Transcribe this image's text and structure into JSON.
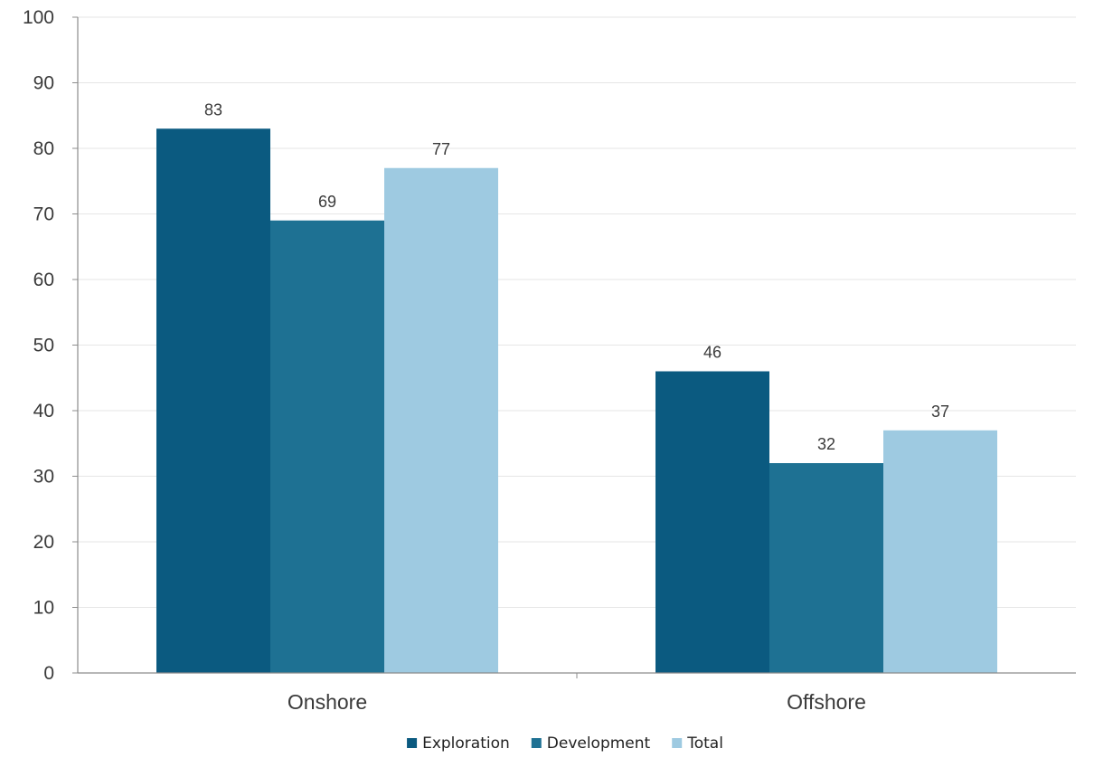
{
  "chart_data": {
    "type": "bar",
    "title": "",
    "xlabel": "",
    "ylabel": "",
    "categories": [
      "Onshore",
      "Offshore"
    ],
    "series": [
      {
        "name": "Exploration",
        "values": [
          83,
          46
        ],
        "color": "#0b5a80"
      },
      {
        "name": "Development",
        "values": [
          69,
          32
        ],
        "color": "#1e7193"
      },
      {
        "name": "Total",
        "values": [
          77,
          37
        ],
        "color": "#9ecae1"
      }
    ],
    "ylim": [
      0,
      100
    ],
    "yticks": [
      0,
      10,
      20,
      30,
      40,
      50,
      60,
      70,
      80,
      90,
      100
    ],
    "grid": true,
    "legend": "bottom-center",
    "data_labels": true
  }
}
